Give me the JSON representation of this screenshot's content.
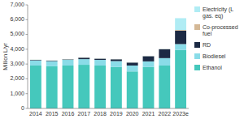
{
  "chart_data": {
    "type": "bar",
    "stacked": true,
    "categories": [
      "2014",
      "2015",
      "2016",
      "2017",
      "2018",
      "2019",
      "2020",
      "2021",
      "2022",
      "2023e"
    ],
    "series": [
      {
        "name": "Ethanol",
        "color": "#45C8BC",
        "values": [
          2900,
          2850,
          2900,
          2950,
          2900,
          2800,
          2500,
          2800,
          2900,
          3950
        ]
      },
      {
        "name": "Biodiesel",
        "color": "#8ADCE8",
        "values": [
          350,
          350,
          380,
          380,
          380,
          400,
          400,
          380,
          500,
          400
        ]
      },
      {
        "name": "RD",
        "color": "#1C2A44",
        "values": [
          30,
          30,
          30,
          100,
          80,
          120,
          200,
          350,
          600,
          900
        ]
      },
      {
        "name": "Co-processed\nfuel",
        "color": "#D4B896",
        "values": [
          10,
          10,
          10,
          10,
          10,
          10,
          10,
          10,
          10,
          50
        ]
      },
      {
        "name": "Electricity (L\ngas. eq)",
        "color": "#B0ECF4",
        "values": [
          10,
          10,
          10,
          10,
          10,
          10,
          10,
          10,
          10,
          800
        ]
      }
    ],
    "y_label": "Million L/yr",
    "ylim": [
      0,
      7000
    ],
    "yticks": [
      0,
      {
        "value": 1000,
        "label": "1,000"
      },
      {
        "value": 2000,
        "label": "2,000"
      },
      {
        "value": 3000,
        "label": "3,000"
      },
      {
        "value": 4000,
        "label": "4,000"
      },
      {
        "value": 5000,
        "label": "5,000"
      },
      {
        "value": 6000,
        "label": "6,000"
      },
      {
        "value": 7000,
        "label": "7,000"
      }
    ],
    "legend": "right"
  }
}
